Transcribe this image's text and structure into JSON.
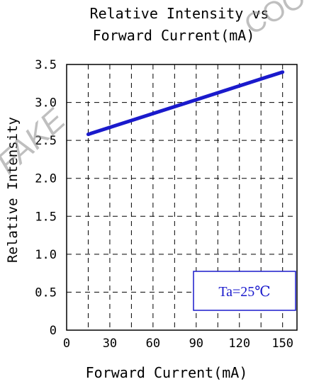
{
  "chart_data": {
    "type": "line",
    "title_line1": "Relative Intensity vs",
    "title_line2": "Forward Current(mA)",
    "xlabel": "Forward Current(mA)",
    "ylabel": "Relative Intensity",
    "xlim": [
      0,
      160
    ],
    "ylim": [
      0,
      3.5
    ],
    "x_ticks": [
      0,
      30,
      60,
      90,
      120,
      150
    ],
    "x_tick_labels": [
      "0",
      "30",
      "60",
      "90",
      "120",
      "150"
    ],
    "y_ticks": [
      0,
      0.5,
      1.0,
      1.5,
      2.0,
      2.5,
      3.0,
      3.5
    ],
    "y_tick_labels": [
      "0",
      "0.5",
      "1.0",
      "1.5",
      "2.0",
      "2.5",
      "3.0",
      "3.5"
    ],
    "x_grid": [
      15,
      30,
      45,
      60,
      75,
      90,
      105,
      120,
      135,
      150
    ],
    "grid": true,
    "series": [
      {
        "x": [
          15,
          150
        ],
        "y": [
          2.58,
          3.4
        ],
        "color": "#1a1acc"
      }
    ],
    "annotation": {
      "text": "Ta=25℃",
      "color": "#1a1acc"
    }
  },
  "watermark": {
    "left_text": "FAKE",
    "right_text": "COO",
    "color": "#999999"
  }
}
